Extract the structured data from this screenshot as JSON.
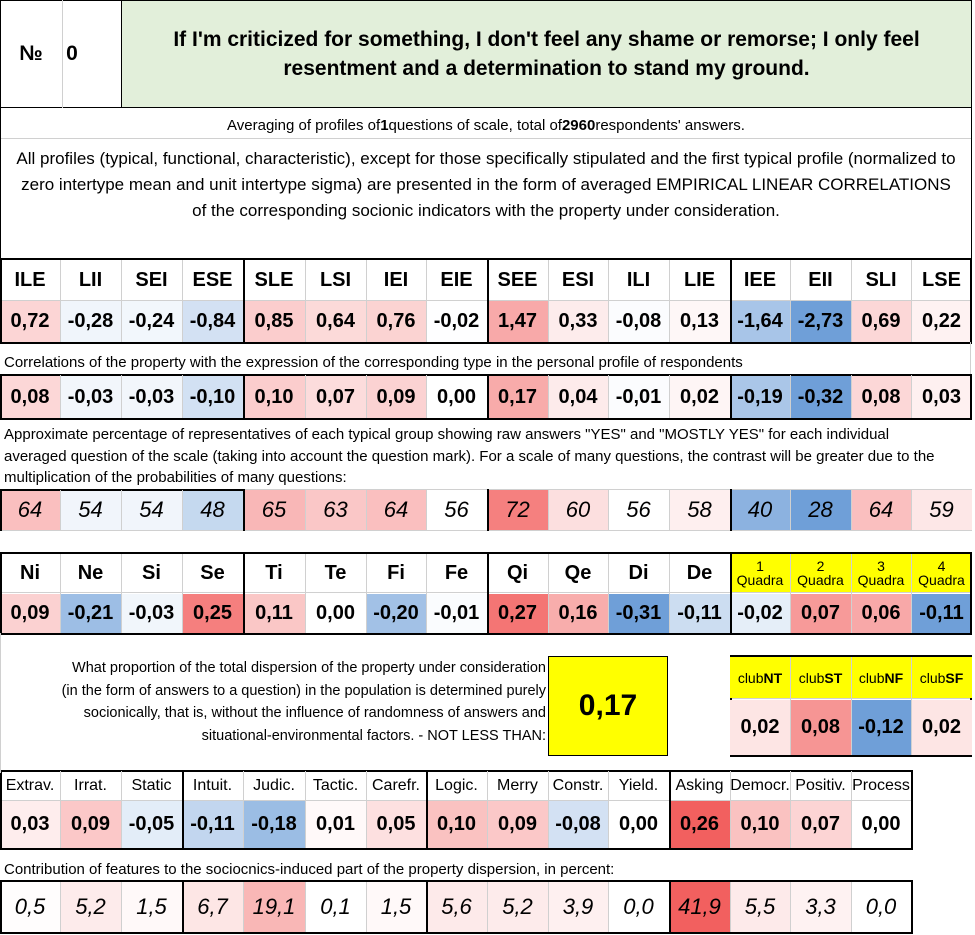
{
  "header": {
    "number_label": "№",
    "number_value": "0",
    "question": "If I'm criticized for something, I don't feel any shame or remorse; I only feel resentment and a determination to stand my ground."
  },
  "summary": {
    "part1": "Averaging of profiles of ",
    "questions_count": "1",
    "part2": " questions of scale, total of ",
    "respondents_count": "2960",
    "part3": " respondents' answers."
  },
  "description": "All profiles (typical, functional, characteristic), except for those specifically stipulated and the first typical profile (normalized to zero intertype mean and unit intertype sigma) are presented in the form of averaged EMPIRICAL LINEAR CORRELATIONS of the corresponding socionic indicators with the property under consideration.",
  "types": {
    "labels": [
      "ILE",
      "LII",
      "SEI",
      "ESE",
      "SLE",
      "LSI",
      "IEI",
      "EIE",
      "SEE",
      "ESI",
      "ILI",
      "LIE",
      "IEE",
      "EII",
      "SLI",
      "LSE"
    ],
    "profile_values": [
      "0,72",
      "-0,28",
      "-0,24",
      "-0,84",
      "0,85",
      "0,64",
      "0,76",
      "-0,02",
      "1,47",
      "0,33",
      "-0,08",
      "0,13",
      "-1,64",
      "-2,73",
      "0,69",
      "0,22"
    ],
    "correlation_note": "Correlations of the property with the expression of the corresponding type in the personal profile of respondents",
    "correlation_values": [
      "0,08",
      "-0,03",
      "-0,03",
      "-0,10",
      "0,10",
      "0,07",
      "0,09",
      "0,00",
      "0,17",
      "0,04",
      "-0,01",
      "0,02",
      "-0,19",
      "-0,32",
      "0,08",
      "0,03"
    ],
    "percentage_note": "Approximate percentage of representatives of each typical group showing raw answers \"YES\" and \"MOSTLY YES\" for each individual averaged question of the scale (taking into account the question mark). For a scale of many questions, the contrast will be greater due to the multiplication of the probabilities of many questions:",
    "percentages": [
      "64",
      "54",
      "54",
      "48",
      "65",
      "63",
      "64",
      "56",
      "72",
      "60",
      "56",
      "58",
      "40",
      "28",
      "64",
      "59"
    ]
  },
  "functions": {
    "labels": [
      "Ni",
      "Ne",
      "Si",
      "Se",
      "Ti",
      "Te",
      "Fi",
      "Fe",
      "Qi",
      "Qe",
      "Di",
      "De"
    ],
    "values": [
      "0,09",
      "-0,21",
      "-0,03",
      "0,25",
      "0,11",
      "0,00",
      "-0,20",
      "-0,01",
      "0,27",
      "0,16",
      "-0,31",
      "-0,11"
    ]
  },
  "quadras": {
    "labels": [
      {
        "n": "1",
        "t": "Quadra"
      },
      {
        "n": "2",
        "t": "Quadra"
      },
      {
        "n": "3",
        "t": "Quadra"
      },
      {
        "n": "4",
        "t": "Quadra"
      }
    ],
    "values": [
      "-0,02",
      "0,07",
      "0,06",
      "-0,11"
    ]
  },
  "dispersion": {
    "text": "What proportion of the total dispersion of the property under consideration (in the form of answers to a question) in the population is determined purely socionically, that is, without the influence of randomness of answers and situational-environmental factors. - NOT LESS THAN:",
    "value": "0,17"
  },
  "clubs": {
    "prefix": "club",
    "labels": [
      "NT",
      "ST",
      "NF",
      "SF"
    ],
    "values": [
      "0,02",
      "0,08",
      "-0,12",
      "0,02"
    ]
  },
  "traits": {
    "labels": [
      "Extrav.",
      "Irrat.",
      "Static",
      "Intuit.",
      "Judic.",
      "Tactic.",
      "Carefr.",
      "Logic.",
      "Merry",
      "Constr.",
      "Yield.",
      "Asking",
      "Democr.",
      "Positiv.",
      "Process"
    ],
    "values": [
      "0,03",
      "0,09",
      "-0,05",
      "-0,11",
      "-0,18",
      "0,01",
      "0,05",
      "0,10",
      "0,09",
      "-0,08",
      "0,00",
      "0,26",
      "0,10",
      "0,07",
      "0,00"
    ],
    "contribution_note": "Contribution of features to the sociocnics-induced part of the property dispersion, in percent:",
    "contributions": [
      "0,5",
      "5,2",
      "1,5",
      "6,7",
      "19,1",
      "0,1",
      "1,5",
      "5,6",
      "5,2",
      "3,9",
      "0,0",
      "41,9",
      "5,5",
      "3,3",
      "0,0"
    ]
  },
  "palette": {
    "header_green": "#e2efda",
    "highlight_yellow": "#ffff00",
    "negative_color": "#6f9fd8",
    "positive_color": "#f2605f"
  }
}
